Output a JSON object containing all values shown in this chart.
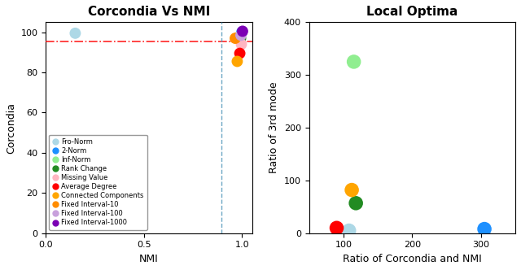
{
  "title1": "Corcondia Vs NMI",
  "title2": "Local Optima",
  "xlabel1": "NMI",
  "ylabel1": "Corcondia",
  "xlabel2": "Ratio of Corcondia and NMI",
  "ylabel2": "Ratio of 3rd mode",
  "methods": [
    "Fro-Norm",
    "2-Norm",
    "Inf-Norm",
    "Rank Change",
    "Missing Value",
    "Average Degree",
    "Connected Components",
    "Fixed Interval-10",
    "Fixed Interval-100",
    "Fixed Interval-1000"
  ],
  "colors": [
    "#ADD8E6",
    "#1E90FF",
    "#90EE90",
    "#228B22",
    "#FFB6C1",
    "#FF0000",
    "#FFA500",
    "#FF8C00",
    "#C8A0DC",
    "#7B00B4"
  ],
  "scatter1_x": [
    0.15,
    0.998,
    0.98,
    0.992,
    0.996,
    0.988,
    0.975,
    0.965,
    0.994,
    1.002
  ],
  "scatter1_y": [
    99.5,
    100.0,
    97.5,
    97.0,
    94.0,
    89.5,
    85.5,
    97.0,
    98.5,
    100.5
  ],
  "scatter2_x": [
    108,
    305,
    115,
    118,
    null,
    90,
    112,
    null,
    null,
    null
  ],
  "scatter2_y": [
    5,
    8,
    325,
    57,
    null,
    10,
    82,
    null,
    null,
    null
  ],
  "hline_y": 95.5,
  "vline_x": 0.895,
  "xlim1": [
    0,
    1.05
  ],
  "ylim1": [
    0,
    105
  ],
  "xlim2": [
    50,
    350
  ],
  "ylim2": [
    0,
    400
  ],
  "xticks1": [
    0,
    0.5,
    1
  ],
  "yticks1": [
    0,
    20,
    40,
    60,
    80,
    100
  ],
  "xticks2": [
    100,
    200,
    300
  ],
  "yticks2": [
    0,
    100,
    200,
    300,
    400
  ],
  "marker_size1": 100,
  "marker_size2": 160,
  "title_fontsize": 11,
  "label_fontsize": 9,
  "legend_fontsize": 6.0
}
